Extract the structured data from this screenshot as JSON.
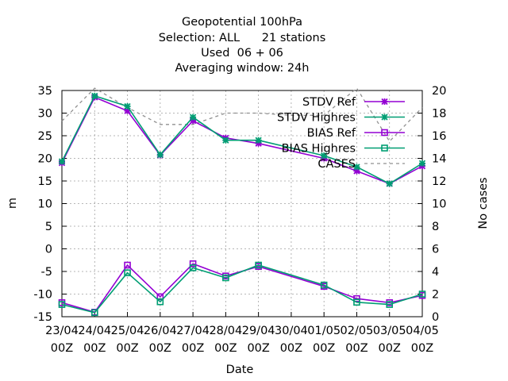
{
  "chart_data": {
    "type": "line",
    "title_lines": [
      "Geopotential 100hPa",
      "Selection: ALL      21 stations",
      "Used  06 + 06",
      "Averaging window: 24h"
    ],
    "xlabel": "Date",
    "ylabel": "m",
    "y2label": "No cases",
    "categories": [
      "23/04 00Z",
      "24/04 00Z",
      "25/04 00Z",
      "26/04 00Z",
      "27/04 00Z",
      "28/04 00Z",
      "29/04 00Z",
      "30/04 00Z",
      "01/05 00Z",
      "02/05 00Z",
      "03/05 00Z",
      "04/05 00Z"
    ],
    "x_tick_labels": [
      [
        "23/04",
        "00Z"
      ],
      [
        "24/04",
        "00Z"
      ],
      [
        "25/04",
        "00Z"
      ],
      [
        "26/04",
        "00Z"
      ],
      [
        "27/04",
        "00Z"
      ],
      [
        "28/04",
        "00Z"
      ],
      [
        "29/04",
        "00Z"
      ],
      [
        "30/04",
        "00Z"
      ],
      [
        "01/05",
        "00Z"
      ],
      [
        "02/05",
        "00Z"
      ],
      [
        "03/05",
        "00Z"
      ],
      [
        "04/05",
        "00Z"
      ]
    ],
    "ylim": [
      -15,
      35
    ],
    "y_ticks": [
      -15,
      -10,
      -5,
      0,
      5,
      10,
      15,
      20,
      25,
      30,
      35
    ],
    "y2lim": [
      0,
      20
    ],
    "y2_ticks": [
      0,
      2,
      4,
      6,
      8,
      10,
      12,
      14,
      16,
      18,
      20
    ],
    "grid": true,
    "legend_position": "top-right",
    "series": [
      {
        "name": "STDV Ref",
        "axis": "y",
        "color": "#9400d3",
        "marker": "cross",
        "dash": "",
        "values": [
          19.0,
          33.5,
          30.5,
          20.7,
          28.3,
          24.5,
          23.3,
          null,
          20.0,
          17.2,
          14.4,
          18.3
        ]
      },
      {
        "name": "STDV Highres",
        "axis": "y",
        "color": "#009e73",
        "marker": "cross",
        "dash": "",
        "values": [
          19.3,
          33.8,
          31.5,
          20.8,
          29.1,
          24.0,
          24.0,
          null,
          20.6,
          18.1,
          14.4,
          18.9
        ]
      },
      {
        "name": "BIAS Ref",
        "axis": "y",
        "color": "#9400d3",
        "marker": "square",
        "dash": "",
        "values": [
          -11.9,
          -14.0,
          -3.6,
          -10.6,
          -3.3,
          -6.0,
          -3.9,
          null,
          -8.3,
          -11.0,
          -11.9,
          -10.3
        ]
      },
      {
        "name": "BIAS Highres",
        "axis": "y",
        "color": "#009e73",
        "marker": "square",
        "dash": "",
        "values": [
          -12.3,
          -14.1,
          -5.3,
          -11.7,
          -4.2,
          -6.4,
          -3.6,
          null,
          -8.0,
          -11.8,
          -12.3,
          -10.0
        ]
      },
      {
        "name": "CASES",
        "axis": "y2",
        "color": "#909090",
        "marker": "none",
        "dash": "4,4",
        "values": [
          17.3,
          20.2,
          18.5,
          17.0,
          17.0,
          18.0,
          18.0,
          17.8,
          17.8,
          20.2,
          15.5,
          18.5
        ]
      }
    ]
  }
}
